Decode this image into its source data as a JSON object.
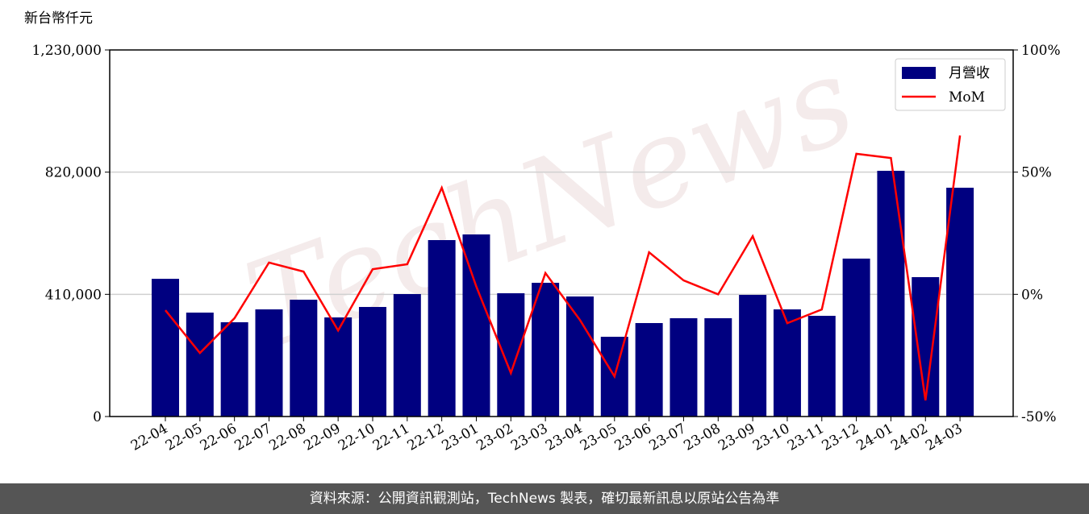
{
  "chart_data": {
    "type": "bar-line",
    "y_label": "新台幣仟元",
    "watermark": "TechNews",
    "categories": [
      "22-04",
      "22-05",
      "22-06",
      "22-07",
      "22-08",
      "22-09",
      "22-10",
      "22-11",
      "22-12",
      "23-01",
      "23-02",
      "23-03",
      "23-04",
      "23-05",
      "23-06",
      "23-07",
      "23-08",
      "23-09",
      "23-10",
      "23-11",
      "23-12",
      "24-01",
      "24-02",
      "24-03"
    ],
    "series": [
      {
        "name": "月營收",
        "type": "bar",
        "color": "#000080",
        "values": [
          462000,
          348700,
          316300,
          359500,
          392000,
          332500,
          367600,
          410900,
          592000,
          611000,
          413600,
          448700,
          402800,
          267600,
          313600,
          329800,
          329800,
          408200,
          359500,
          337900,
          529900,
          824500,
          467700,
          767700
        ]
      },
      {
        "name": "MoM",
        "type": "line",
        "axis": "y2",
        "color": "#ff0000",
        "values": [
          -6.5,
          -24,
          -9.8,
          13,
          9.3,
          -14.8,
          10.3,
          12.3,
          43.6,
          3.2,
          -32.2,
          8.7,
          -10.5,
          -33.6,
          17.2,
          5.7,
          0,
          23.8,
          -11.8,
          -6.2,
          57.5,
          55.8,
          -43.4,
          65
        ]
      }
    ],
    "ylim": [
      0,
      1230000
    ],
    "yticks": [
      0,
      {
        "value": 410000,
        "label": "410,000"
      },
      {
        "value": 820000,
        "label": "820,000"
      },
      {
        "value": 1230000,
        "label": "1,230,000"
      }
    ],
    "y2lim": [
      -50,
      100
    ],
    "y2ticks": [
      {
        "value": -50,
        "label": "-50%"
      },
      {
        "value": 0,
        "label": "0%"
      },
      {
        "value": 50,
        "label": "50%"
      },
      {
        "value": 100,
        "label": "100%"
      }
    ],
    "grid": true,
    "legend": "upper right",
    "footer": "資料來源：公開資訊觀測站，TechNews 製表，確切最新訊息以原站公告為準"
  }
}
